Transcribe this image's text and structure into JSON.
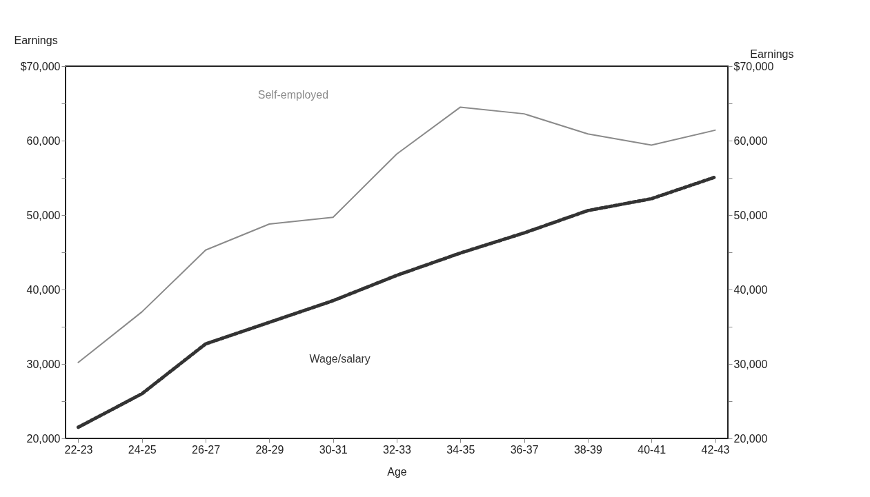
{
  "chart_data": {
    "type": "line",
    "xlabel": "Age",
    "ylabel": "Earnings",
    "y2label": "Earnings",
    "categories": [
      "22-23",
      "24-25",
      "26-27",
      "28-29",
      "30-31",
      "32-33",
      "34-35",
      "36-37",
      "38-39",
      "40-41",
      "42-43"
    ],
    "series": [
      {
        "name": "Self-employed",
        "color": "#8a8a8a",
        "line_style": "solid",
        "values": [
          30200,
          37000,
          45300,
          48800,
          49700,
          58200,
          64500,
          63600,
          60900,
          59400,
          61400
        ]
      },
      {
        "name": "Wage/salary",
        "color": "#333333",
        "line_style": "dotted",
        "values": [
          21500,
          26000,
          32700,
          35600,
          38500,
          41900,
          44900,
          47600,
          50600,
          52200,
          55100
        ]
      }
    ],
    "ylim": [
      20000,
      70000
    ],
    "yticks": [
      {
        "value": 20000,
        "label": "20,000"
      },
      {
        "value": 25000,
        "label": null
      },
      {
        "value": 30000,
        "label": "30,000"
      },
      {
        "value": 35000,
        "label": null
      },
      {
        "value": 40000,
        "label": "40,000"
      },
      {
        "value": 45000,
        "label": null
      },
      {
        "value": 50000,
        "label": "50,000"
      },
      {
        "value": 55000,
        "label": null
      },
      {
        "value": 60000,
        "label": "60,000"
      },
      {
        "value": 65000,
        "label": null
      },
      {
        "value": 70000,
        "label": "$70,000"
      }
    ],
    "y2lim": [
      20000,
      70000
    ],
    "y2ticks": [
      {
        "value": 20000,
        "label": "20,000"
      },
      {
        "value": 25000,
        "label": null
      },
      {
        "value": 30000,
        "label": "30,000"
      },
      {
        "value": 35000,
        "label": null
      },
      {
        "value": 40000,
        "label": "40,000"
      },
      {
        "value": 45000,
        "label": null
      },
      {
        "value": 50000,
        "label": "50,000"
      },
      {
        "value": 55000,
        "label": null
      },
      {
        "value": 60000,
        "label": "60,000"
      },
      {
        "value": 65000,
        "label": null
      },
      {
        "value": 70000,
        "label": "$70,000"
      }
    ],
    "grid": false,
    "legend": false,
    "marker": "none"
  }
}
